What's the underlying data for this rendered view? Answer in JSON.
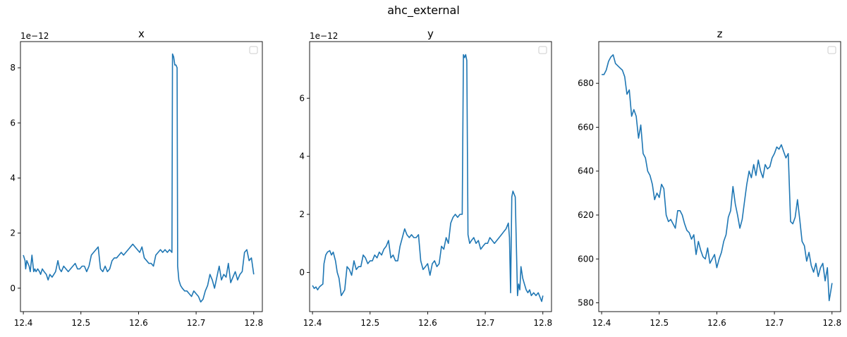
{
  "figure": {
    "suptitle": "ahc_external"
  },
  "chart_data": [
    {
      "type": "line",
      "title": "x",
      "offset_text": "1e−12",
      "xlim": [
        12.395,
        12.815
      ],
      "ylim": [
        -0.85,
        8.95
      ],
      "xticks": [
        12.4,
        12.5,
        12.6,
        12.7,
        12.8
      ],
      "xtick_labels": [
        "12.4",
        "12.5",
        "12.6",
        "12.7",
        "12.8"
      ],
      "yticks": [
        0,
        2,
        4,
        6,
        8
      ],
      "ytick_labels": [
        "0",
        "2",
        "4",
        "6",
        "8"
      ],
      "grid": false,
      "legend": "upper right (empty)",
      "color": "#1f77b4",
      "series": [
        {
          "x": [
            12.4,
            12.403,
            12.404,
            12.406,
            12.41,
            12.412,
            12.415,
            12.418,
            12.42,
            12.422,
            12.425,
            12.428,
            12.43,
            12.433,
            12.436,
            12.44,
            12.443,
            12.446,
            12.45,
            12.453,
            12.456,
            12.46,
            12.463,
            12.466,
            12.47,
            12.474,
            12.478,
            12.482,
            12.486,
            12.49,
            12.494,
            12.498,
            12.502,
            12.506,
            12.51,
            12.514,
            12.518,
            12.522,
            12.526,
            12.53,
            12.534,
            12.538,
            12.542,
            12.546,
            12.55,
            12.554,
            12.558,
            12.562,
            12.566,
            12.57,
            12.574,
            12.578,
            12.582,
            12.586,
            12.59,
            12.594,
            12.598,
            12.602,
            12.606,
            12.61,
            12.614,
            12.618,
            12.622,
            12.626,
            12.63,
            12.634,
            12.638,
            12.642,
            12.646,
            12.65,
            12.654,
            12.658,
            12.659,
            12.661,
            12.663,
            12.665,
            12.667,
            12.668,
            12.67,
            12.673,
            12.676,
            12.68,
            12.684,
            12.688,
            12.692,
            12.696,
            12.7,
            12.704,
            12.708,
            12.712,
            12.716,
            12.72,
            12.724,
            12.728,
            12.732,
            12.736,
            12.74,
            12.744,
            12.748,
            12.752,
            12.756,
            12.76,
            12.764,
            12.768,
            12.772,
            12.776,
            12.78,
            12.784,
            12.788,
            12.792,
            12.796,
            12.8
          ],
          "y": [
            1.2,
            1.0,
            0.7,
            1.0,
            0.8,
            0.6,
            1.2,
            0.6,
            0.7,
            0.6,
            0.7,
            0.6,
            0.5,
            0.7,
            0.6,
            0.5,
            0.3,
            0.5,
            0.4,
            0.5,
            0.6,
            1.0,
            0.7,
            0.6,
            0.8,
            0.7,
            0.6,
            0.7,
            0.8,
            0.9,
            0.7,
            0.7,
            0.8,
            0.8,
            0.6,
            0.8,
            1.2,
            1.3,
            1.4,
            1.5,
            0.7,
            0.6,
            0.8,
            0.6,
            0.7,
            1.0,
            1.1,
            1.1,
            1.2,
            1.3,
            1.2,
            1.3,
            1.4,
            1.5,
            1.6,
            1.5,
            1.4,
            1.3,
            1.5,
            1.1,
            1.0,
            0.9,
            0.9,
            0.8,
            1.2,
            1.3,
            1.4,
            1.3,
            1.4,
            1.3,
            1.4,
            1.3,
            8.5,
            8.4,
            8.1,
            8.1,
            8.0,
            0.8,
            0.3,
            0.1,
            0.0,
            -0.1,
            -0.1,
            -0.2,
            -0.3,
            -0.1,
            -0.2,
            -0.3,
            -0.5,
            -0.4,
            -0.1,
            0.1,
            0.5,
            0.3,
            0.0,
            0.4,
            0.8,
            0.3,
            0.5,
            0.4,
            0.9,
            0.2,
            0.4,
            0.6,
            0.3,
            0.5,
            0.6,
            1.3,
            1.4,
            1.0,
            1.1,
            0.5
          ]
        }
      ]
    },
    {
      "type": "line",
      "title": "y",
      "offset_text": "1e−12",
      "xlim": [
        12.395,
        12.815
      ],
      "ylim": [
        -1.35,
        7.95
      ],
      "xticks": [
        12.4,
        12.5,
        12.6,
        12.7,
        12.8
      ],
      "xtick_labels": [
        "12.4",
        "12.5",
        "12.6",
        "12.7",
        "12.8"
      ],
      "yticks": [
        0,
        2,
        4,
        6
      ],
      "ytick_labels": [
        "0",
        "2",
        "4",
        "6"
      ],
      "grid": false,
      "legend": "upper right (empty)",
      "color": "#1f77b4",
      "series": [
        {
          "x": [
            12.4,
            12.403,
            12.406,
            12.409,
            12.412,
            12.415,
            12.418,
            12.42,
            12.423,
            12.426,
            12.43,
            12.433,
            12.436,
            12.44,
            12.443,
            12.446,
            12.45,
            12.453,
            12.456,
            12.46,
            12.464,
            12.468,
            12.472,
            12.476,
            12.48,
            12.484,
            12.488,
            12.492,
            12.496,
            12.5,
            12.504,
            12.508,
            12.512,
            12.516,
            12.52,
            12.524,
            12.528,
            12.532,
            12.536,
            12.54,
            12.544,
            12.548,
            12.552,
            12.556,
            12.56,
            12.564,
            12.568,
            12.572,
            12.576,
            12.58,
            12.584,
            12.588,
            12.592,
            12.596,
            12.6,
            12.604,
            12.608,
            12.612,
            12.616,
            12.62,
            12.624,
            12.628,
            12.632,
            12.636,
            12.64,
            12.644,
            12.648,
            12.652,
            12.656,
            12.66,
            12.662,
            12.664,
            12.666,
            12.668,
            12.67,
            12.673,
            12.676,
            12.68,
            12.684,
            12.688,
            12.692,
            12.696,
            12.7,
            12.704,
            12.708,
            12.712,
            12.716,
            12.72,
            12.724,
            12.728,
            12.732,
            12.736,
            12.74,
            12.742,
            12.744,
            12.746,
            12.748,
            12.75,
            12.752,
            12.756,
            12.758,
            12.76,
            12.762,
            12.765,
            12.768,
            12.771,
            12.774,
            12.777,
            12.78,
            12.784,
            12.788,
            12.792,
            12.796,
            12.798,
            12.8
          ],
          "y": [
            -0.45,
            -0.55,
            -0.5,
            -0.6,
            -0.5,
            -0.45,
            -0.4,
            0.3,
            0.6,
            0.7,
            0.75,
            0.6,
            0.7,
            0.4,
            0.0,
            -0.2,
            -0.8,
            -0.7,
            -0.6,
            0.2,
            0.1,
            -0.1,
            0.4,
            0.1,
            0.2,
            0.2,
            0.6,
            0.5,
            0.3,
            0.4,
            0.4,
            0.6,
            0.5,
            0.7,
            0.6,
            0.8,
            0.9,
            1.1,
            0.5,
            0.6,
            0.4,
            0.4,
            0.9,
            1.2,
            1.5,
            1.3,
            1.2,
            1.3,
            1.2,
            1.2,
            1.3,
            0.4,
            0.1,
            0.2,
            0.3,
            -0.1,
            0.3,
            0.4,
            0.2,
            0.3,
            0.9,
            0.8,
            1.2,
            1.0,
            1.7,
            1.9,
            2.0,
            1.9,
            2.0,
            2.0,
            7.5,
            7.4,
            7.5,
            7.3,
            1.3,
            1.0,
            1.1,
            1.2,
            1.0,
            1.1,
            0.8,
            0.9,
            1.0,
            1.0,
            1.2,
            1.1,
            1.0,
            1.1,
            1.2,
            1.3,
            1.4,
            1.5,
            1.7,
            1.2,
            -0.7,
            2.6,
            2.8,
            2.7,
            2.6,
            -0.8,
            -0.4,
            -0.6,
            0.2,
            -0.2,
            -0.4,
            -0.6,
            -0.7,
            -0.6,
            -0.8,
            -0.7,
            -0.8,
            -0.7,
            -0.9,
            -1.0,
            -0.8
          ]
        }
      ]
    },
    {
      "type": "line",
      "title": "z",
      "offset_text": "",
      "xlim": [
        12.395,
        12.815
      ],
      "ylim": [
        576,
        699
      ],
      "xticks": [
        12.4,
        12.5,
        12.6,
        12.7,
        12.8
      ],
      "xtick_labels": [
        "12.4",
        "12.5",
        "12.6",
        "12.7",
        "12.8"
      ],
      "yticks": [
        580,
        600,
        620,
        640,
        660,
        680
      ],
      "ytick_labels": [
        "580",
        "600",
        "620",
        "640",
        "660",
        "680"
      ],
      "grid": false,
      "legend": "upper right (empty)",
      "color": "#1f77b4",
      "series": [
        {
          "x": [
            12.4,
            12.404,
            12.408,
            12.412,
            12.416,
            12.42,
            12.424,
            12.428,
            12.432,
            12.436,
            12.44,
            12.444,
            12.448,
            12.452,
            12.456,
            12.46,
            12.464,
            12.468,
            12.472,
            12.476,
            12.48,
            12.484,
            12.488,
            12.492,
            12.496,
            12.5,
            12.504,
            12.508,
            12.512,
            12.516,
            12.52,
            12.524,
            12.528,
            12.532,
            12.536,
            12.54,
            12.544,
            12.548,
            12.552,
            12.556,
            12.56,
            12.564,
            12.568,
            12.572,
            12.576,
            12.58,
            12.584,
            12.588,
            12.592,
            12.596,
            12.6,
            12.604,
            12.608,
            12.612,
            12.616,
            12.62,
            12.624,
            12.628,
            12.632,
            12.636,
            12.64,
            12.644,
            12.648,
            12.652,
            12.656,
            12.66,
            12.664,
            12.668,
            12.672,
            12.676,
            12.68,
            12.684,
            12.688,
            12.692,
            12.696,
            12.7,
            12.704,
            12.708,
            12.712,
            12.716,
            12.72,
            12.724,
            12.728,
            12.732,
            12.736,
            12.74,
            12.744,
            12.748,
            12.752,
            12.756,
            12.76,
            12.764,
            12.768,
            12.772,
            12.776,
            12.78,
            12.784,
            12.788,
            12.792,
            12.795,
            12.797,
            12.8
          ],
          "y": [
            684,
            684,
            686,
            690,
            692,
            693,
            689,
            688,
            687,
            686,
            683,
            675,
            677,
            665,
            668,
            665,
            655,
            661,
            648,
            646,
            640,
            638,
            634,
            627,
            630,
            628,
            634,
            632,
            620,
            617,
            618,
            616,
            614,
            622,
            622,
            620,
            616,
            613,
            612,
            609,
            611,
            602,
            608,
            604,
            601,
            600,
            605,
            598,
            600,
            602,
            596,
            600,
            603,
            608,
            611,
            619,
            622,
            633,
            625,
            620,
            614,
            618,
            626,
            634,
            640,
            637,
            643,
            638,
            645,
            640,
            637,
            643,
            641,
            642,
            646,
            648,
            651,
            650,
            652,
            649,
            646,
            648,
            617,
            616,
            619,
            627,
            618,
            608,
            606,
            599,
            603,
            597,
            594,
            598,
            592,
            596,
            598,
            590,
            596,
            581,
            584,
            589
          ]
        }
      ]
    }
  ]
}
